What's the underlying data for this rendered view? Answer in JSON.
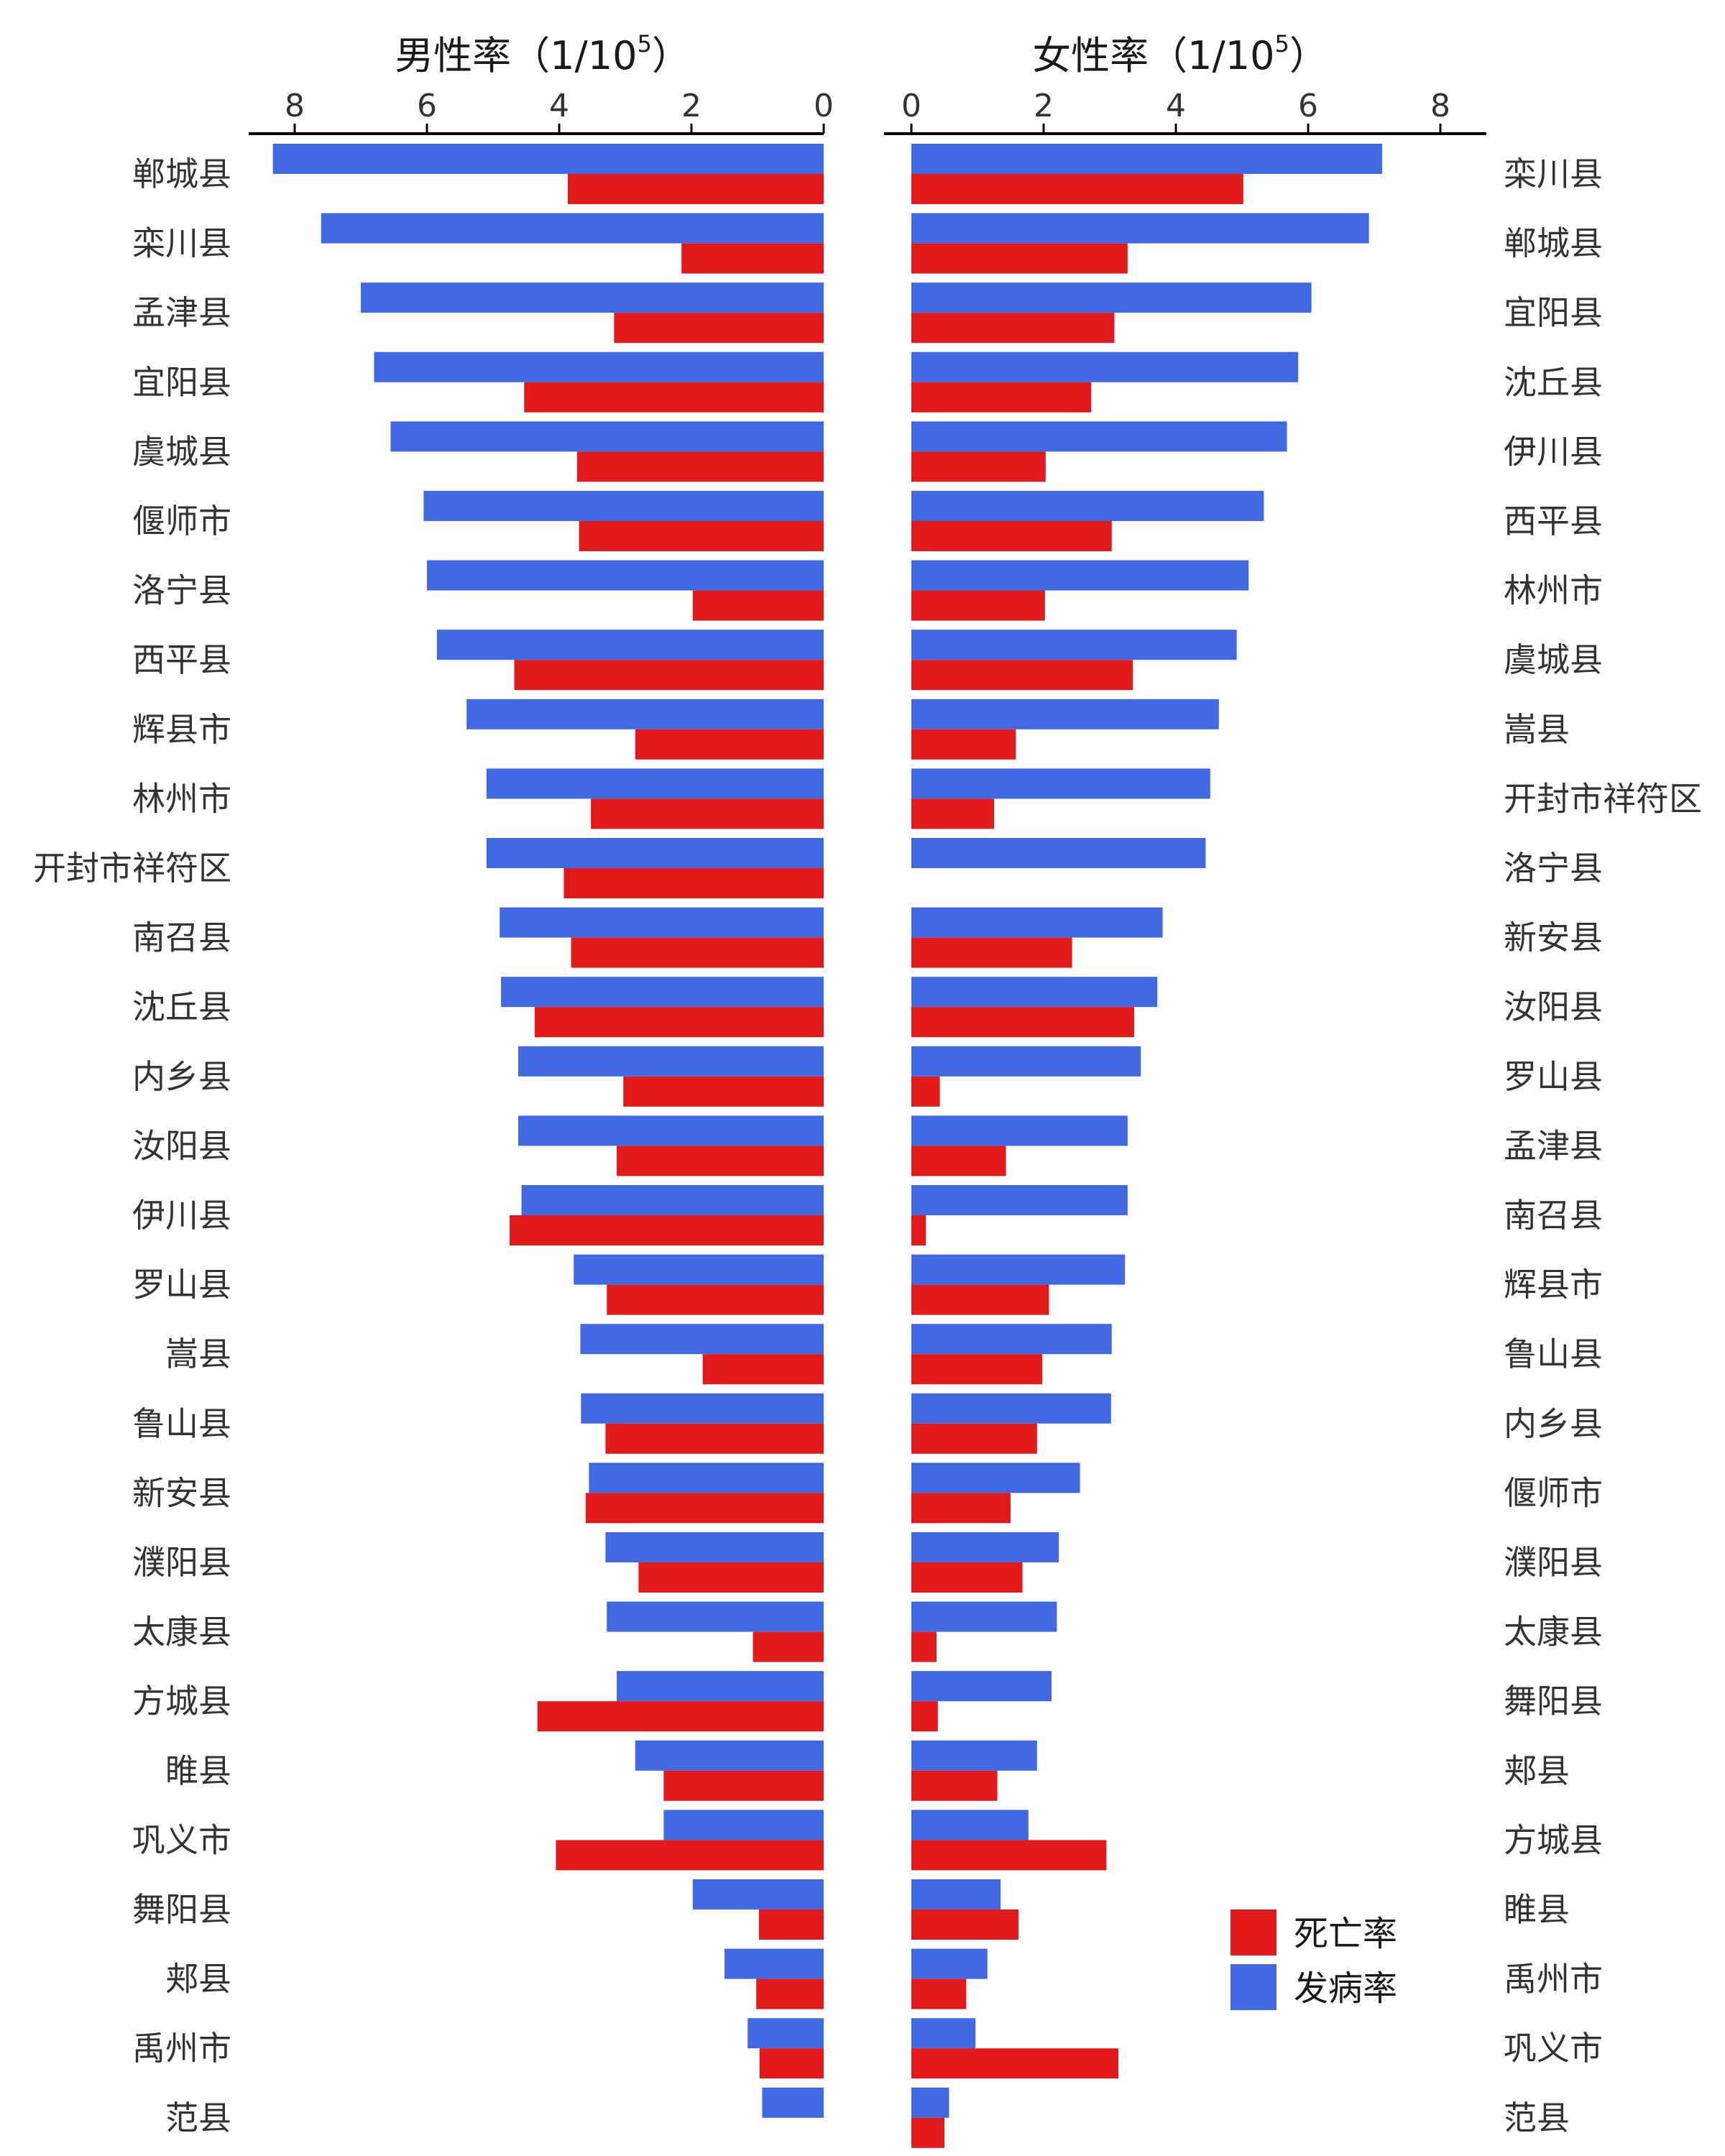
{
  "chart_data": {
    "type": "bar",
    "orientation": "horizontal",
    "layout": "back-to-back",
    "legend": {
      "position": "bottom-right",
      "items": [
        {
          "label": "死亡率",
          "color": "#e31a1c"
        },
        {
          "label": "发病率",
          "color": "#4169e1"
        }
      ]
    },
    "panels": [
      {
        "key": "male",
        "title_main": "男性率（1/10",
        "title_sup": "5",
        "title_end": "）",
        "direction": "reversed",
        "xlim": [
          0,
          8.3
        ],
        "ticks": [
          "0",
          "2",
          "4",
          "6",
          "8"
        ],
        "categories": [
          "郸城县",
          "栾川县",
          "孟津县",
          "宜阳县",
          "虞城县",
          "偃师市",
          "洛宁县",
          "西平县",
          "辉县市",
          "林州市",
          "开封市祥符区",
          "南召县",
          "沈丘县",
          "内乡县",
          "汝阳县",
          "伊川县",
          "罗山县",
          "嵩县",
          "鲁山县",
          "新安县",
          "濮阳县",
          "太康县",
          "方城县",
          "睢县",
          "巩义市",
          "舞阳县",
          "郏县",
          "禹州市",
          "范县"
        ],
        "series": [
          {
            "name": "发病率",
            "color": "#4169e1",
            "values": [
              8.33,
              7.6,
              7.0,
              6.8,
              6.55,
              6.05,
              6.0,
              5.85,
              5.4,
              5.1,
              5.1,
              4.9,
              4.88,
              4.62,
              4.62,
              4.57,
              3.78,
              3.68,
              3.67,
              3.55,
              3.3,
              3.28,
              3.13,
              2.85,
              2.42,
              1.98,
              1.5,
              1.15,
              0.93
            ]
          },
          {
            "name": "死亡率",
            "color": "#e31a1c",
            "values": [
              3.87,
              2.15,
              3.17,
              4.53,
              3.73,
              3.7,
              1.98,
              4.68,
              2.85,
              3.52,
              3.93,
              3.82,
              4.37,
              3.03,
              3.13,
              4.75,
              3.28,
              1.83,
              3.3,
              3.6,
              2.8,
              1.07,
              4.33,
              2.42,
              4.05,
              0.98,
              1.02,
              0.97,
              0
            ]
          }
        ]
      },
      {
        "key": "female",
        "title_main": "女性率（1/10",
        "title_sup": "5",
        "title_end": "）",
        "direction": "normal",
        "xlim": [
          0,
          8.7
        ],
        "ticks": [
          "0",
          "2",
          "4",
          "6",
          "8"
        ],
        "categories": [
          "栾川县",
          "郸城县",
          "宜阳县",
          "沈丘县",
          "伊川县",
          "西平县",
          "林州市",
          "虞城县",
          "嵩县",
          "开封市祥符区",
          "洛宁县",
          "新安县",
          "汝阳县",
          "罗山县",
          "孟津县",
          "南召县",
          "辉县市",
          "鲁山县",
          "内乡县",
          "偃师市",
          "濮阳县",
          "太康县",
          "舞阳县",
          "郏县",
          "方城县",
          "睢县",
          "禹州市",
          "巩义市",
          "范县"
        ],
        "series": [
          {
            "name": "发病率",
            "color": "#4169e1",
            "values": [
              7.12,
              6.92,
              6.05,
              5.85,
              5.68,
              5.33,
              5.1,
              4.92,
              4.65,
              4.52,
              4.45,
              3.8,
              3.72,
              3.47,
              3.27,
              3.27,
              3.23,
              3.03,
              3.02,
              2.55,
              2.23,
              2.2,
              2.12,
              1.9,
              1.77,
              1.35,
              1.15,
              0.97,
              0.57
            ]
          },
          {
            "name": "死亡率",
            "color": "#e31a1c",
            "values": [
              5.02,
              3.27,
              3.07,
              2.72,
              2.03,
              3.03,
              2.02,
              3.35,
              1.58,
              1.25,
              0,
              2.43,
              3.37,
              0.43,
              1.43,
              0.22,
              2.08,
              1.98,
              1.9,
              1.5,
              1.68,
              0.38,
              0.4,
              1.3,
              2.95,
              1.62,
              0.83,
              3.13,
              0.5
            ]
          }
        ]
      }
    ]
  }
}
